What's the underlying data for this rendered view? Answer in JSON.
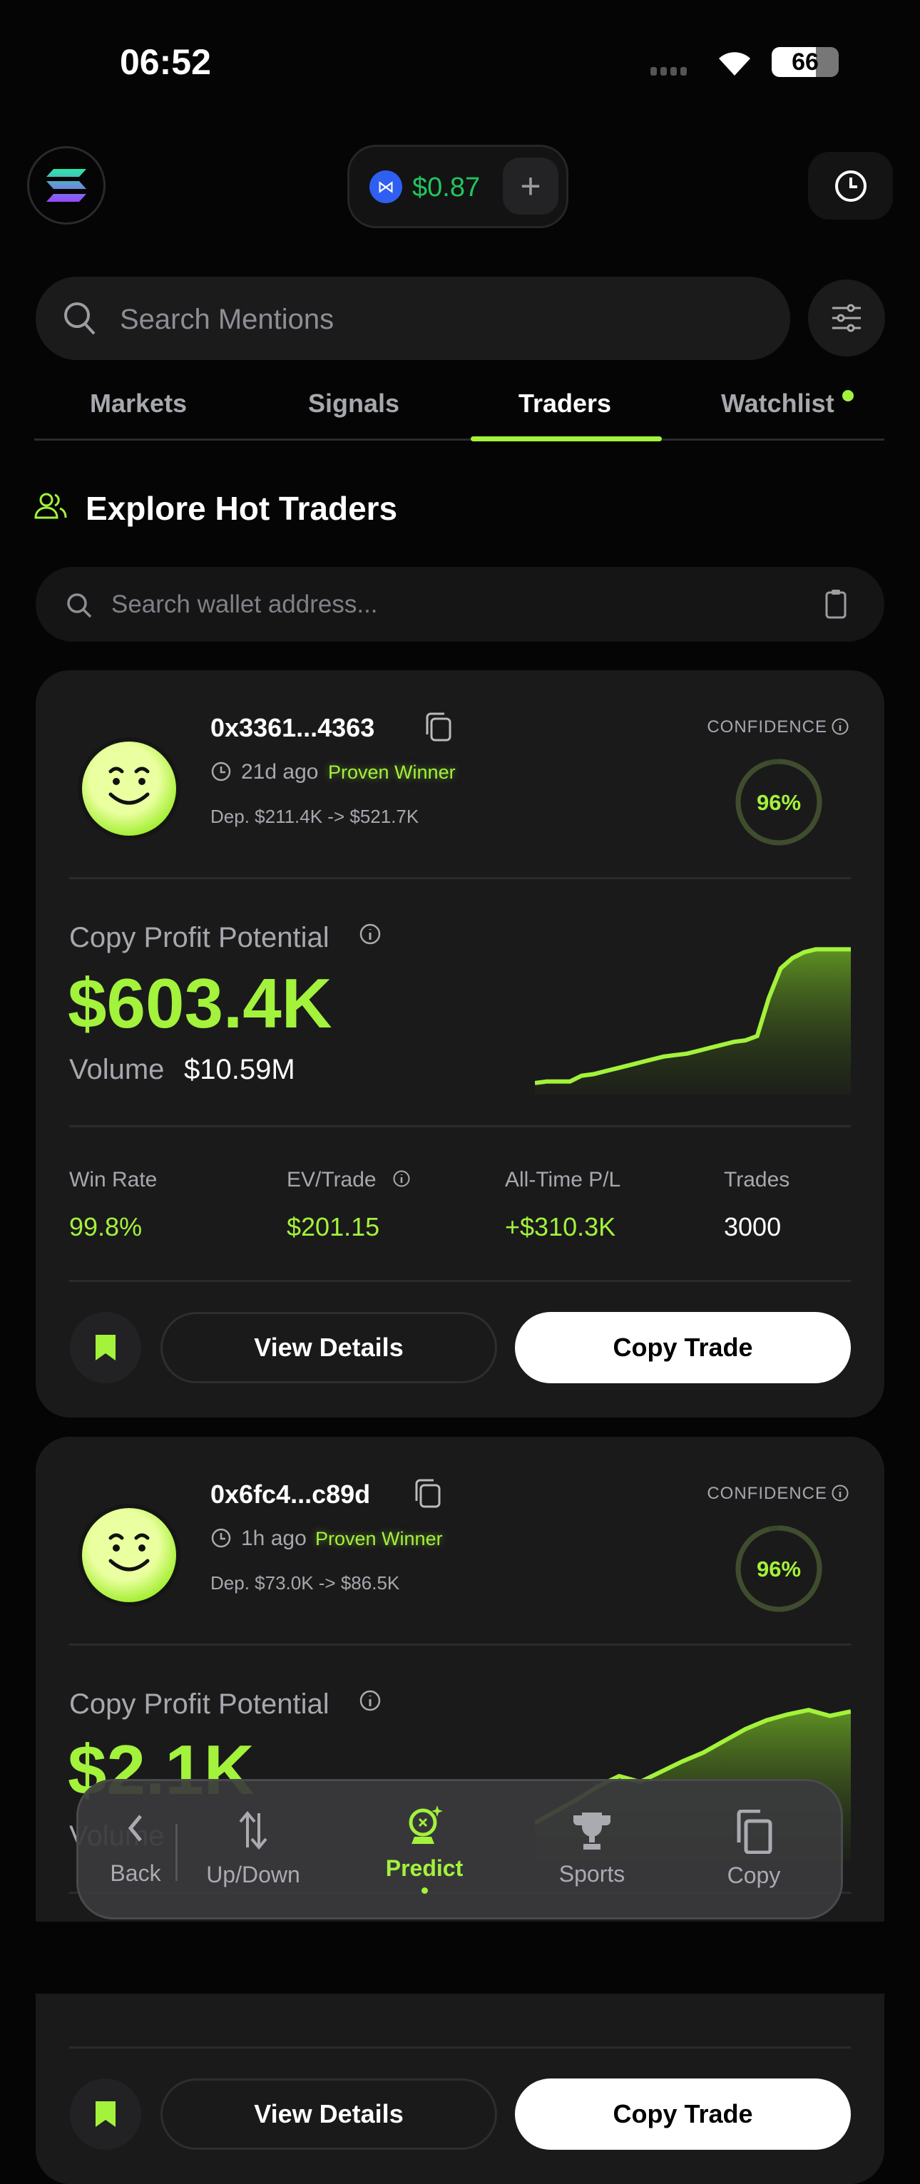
{
  "status_bar": {
    "time": "06:52",
    "battery": "66"
  },
  "header": {
    "balance": "$0.87",
    "add_label": "+"
  },
  "search": {
    "placeholder": "Search Mentions"
  },
  "tabs": [
    {
      "label": "Markets",
      "active": false
    },
    {
      "label": "Signals",
      "active": false
    },
    {
      "label": "Traders",
      "active": true
    },
    {
      "label": "Watchlist",
      "active": false,
      "badge_dot": true
    }
  ],
  "section": {
    "title": "Explore Hot Traders"
  },
  "wallet_search": {
    "placeholder": "Search wallet address..."
  },
  "colors": {
    "accent": "#a3f23b",
    "balance": "#22c55e",
    "card": "#1a1a1b",
    "background": "#050505"
  },
  "cards": [
    {
      "address": "0x3361...4363",
      "age": "21d ago",
      "badge": "Proven Winner",
      "deposit": "Dep. $211.4K -> $521.7K",
      "confidence_label": "CONFIDENCE",
      "confidence": "96%",
      "confidence_value": 96,
      "cpp_label": "Copy Profit Potential",
      "cpp_value": "$603.4K",
      "volume_label": "Volume",
      "volume_value": "$10.59M",
      "sparkline": [
        2,
        3,
        3,
        3,
        7,
        8,
        10,
        12,
        14,
        16,
        18,
        20,
        21,
        22,
        24,
        26,
        28,
        30,
        31,
        34,
        60,
        80,
        87,
        91,
        93,
        93,
        93,
        93
      ],
      "stats": [
        {
          "label": "Win Rate",
          "value": "99.8%"
        },
        {
          "label": "EV/Trade",
          "value": "$201.15"
        },
        {
          "label": "All-Time P/L",
          "value": "+$310.3K"
        },
        {
          "label": "Trades",
          "value": "3000"
        }
      ],
      "view_label": "View Details",
      "copy_label": "Copy Trade"
    },
    {
      "address": "0x6fc4...c89d",
      "age": "1h ago",
      "badge": "Proven Winner",
      "deposit": "Dep. $73.0K -> $86.5K",
      "confidence_label": "CONFIDENCE",
      "confidence": "96%",
      "confidence_value": 96,
      "cpp_label": "Copy Profit Potential",
      "cpp_value": "$2.1K",
      "volume_label": "Volume",
      "volume_value": "",
      "sparkline": [
        20,
        28,
        36,
        45,
        52,
        48,
        55,
        62,
        68,
        76,
        84,
        90,
        94,
        97,
        93,
        96
      ],
      "stats": [],
      "view_label": "View Details",
      "copy_label": "Copy Trade"
    }
  ],
  "bottom_nav": [
    {
      "label": "Back",
      "icon": "chevron-left"
    },
    {
      "label": "Up/Down",
      "icon": "arrows-up-down"
    },
    {
      "label": "Predict",
      "icon": "crystal-ball",
      "active": true
    },
    {
      "label": "Sports",
      "icon": "trophy"
    },
    {
      "label": "Copy",
      "icon": "copy"
    }
  ]
}
